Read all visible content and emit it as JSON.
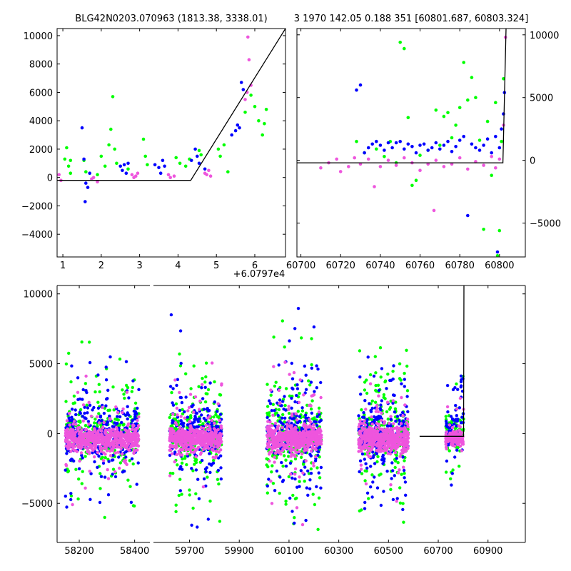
{
  "figure": {
    "title_left": "BLG42N0203.070963 (1813.38, 3338.01)",
    "title_right": "3 1970 142.05 0.188 351 [60801.687, 60803.324]",
    "offset_label": "+6.0797e4"
  },
  "colors": {
    "green": "#00ff00",
    "blue": "#0000ff",
    "magenta": "#ee55dd",
    "line": "#000000"
  },
  "chart_data": [
    {
      "name": "zoom-panel",
      "type": "scatter",
      "title": "BLG42N0203.070963 (1813.38, 3338.01)",
      "xlabel": "",
      "ylabel": "",
      "xlim": [
        0.85,
        6.8
      ],
      "ylim": [
        -5600,
        10500
      ],
      "xticks": [
        1,
        2,
        3,
        4,
        5,
        6
      ],
      "xtick_labels": [
        "1",
        "2",
        "3",
        "4",
        "5",
        "6"
      ],
      "yticks": [
        -4000,
        -2000,
        0,
        2000,
        4000,
        6000,
        8000,
        10000
      ],
      "ytick_labels": [
        "−4000",
        "−2000",
        "0",
        "2000",
        "4000",
        "6000",
        "8000",
        "10000"
      ],
      "x_offset_label": "+6.0797e4",
      "model_line": {
        "x": [
          0.85,
          4.33,
          6.8
        ],
        "y": [
          -200,
          -200,
          10500
        ]
      },
      "series": [
        {
          "name": "green",
          "color": "#00ff00",
          "points": [
            [
              1.05,
              1300
            ],
            [
              1.1,
              2100
            ],
            [
              1.15,
              800
            ],
            [
              1.2,
              300
            ],
            [
              1.2,
              1200
            ],
            [
              1.55,
              1200
            ],
            [
              1.6,
              400
            ],
            [
              1.9,
              200
            ],
            [
              2.0,
              1500
            ],
            [
              2.1,
              800
            ],
            [
              2.2,
              2300
            ],
            [
              2.25,
              3400
            ],
            [
              2.3,
              5700
            ],
            [
              2.35,
              2000
            ],
            [
              2.4,
              1000
            ],
            [
              2.7,
              600
            ],
            [
              3.1,
              2700
            ],
            [
              3.15,
              1500
            ],
            [
              3.2,
              900
            ],
            [
              3.95,
              1400
            ],
            [
              4.05,
              1000
            ],
            [
              4.2,
              800
            ],
            [
              4.3,
              1300
            ],
            [
              4.55,
              1900
            ],
            [
              4.6,
              1600
            ],
            [
              5.05,
              2000
            ],
            [
              5.1,
              1500
            ],
            [
              5.2,
              2300
            ],
            [
              5.3,
              400
            ],
            [
              5.75,
              4600
            ],
            [
              5.9,
              5800
            ],
            [
              6.0,
              5000
            ],
            [
              6.1,
              4000
            ],
            [
              6.2,
              3000
            ],
            [
              6.25,
              3800
            ],
            [
              6.3,
              4800
            ]
          ]
        },
        {
          "name": "blue",
          "color": "#0000ff",
          "points": [
            [
              1.5,
              3500
            ],
            [
              1.55,
              1300
            ],
            [
              1.6,
              -400
            ],
            [
              1.65,
              -700
            ],
            [
              1.58,
              -1700
            ],
            [
              1.7,
              300
            ],
            [
              2.5,
              800
            ],
            [
              2.55,
              500
            ],
            [
              2.6,
              900
            ],
            [
              2.65,
              300
            ],
            [
              2.7,
              1000
            ],
            [
              3.4,
              900
            ],
            [
              3.5,
              700
            ],
            [
              3.55,
              300
            ],
            [
              3.6,
              1200
            ],
            [
              3.65,
              800
            ],
            [
              4.35,
              1200
            ],
            [
              4.45,
              2000
            ],
            [
              4.5,
              1500
            ],
            [
              4.55,
              1000
            ],
            [
              4.7,
              600
            ],
            [
              5.4,
              3000
            ],
            [
              5.5,
              3300
            ],
            [
              5.55,
              3700
            ],
            [
              5.6,
              3500
            ],
            [
              5.65,
              6700
            ],
            [
              5.7,
              6200
            ]
          ]
        },
        {
          "name": "magenta",
          "color": "#ee55dd",
          "points": [
            [
              0.9,
              200
            ],
            [
              0.95,
              -200
            ],
            [
              1.75,
              -100
            ],
            [
              1.8,
              0
            ],
            [
              1.9,
              -300
            ],
            [
              2.8,
              200
            ],
            [
              2.85,
              0
            ],
            [
              2.9,
              100
            ],
            [
              2.95,
              300
            ],
            [
              3.75,
              200
            ],
            [
              3.8,
              0
            ],
            [
              3.9,
              100
            ],
            [
              4.7,
              300
            ],
            [
              4.75,
              200
            ],
            [
              4.8,
              500
            ],
            [
              4.85,
              100
            ],
            [
              5.75,
              5500
            ],
            [
              5.8,
              6000
            ],
            [
              5.85,
              8300
            ],
            [
              5.82,
              9900
            ],
            [
              5.9,
              6500
            ]
          ]
        }
      ]
    },
    {
      "name": "recent-panel",
      "type": "scatter",
      "title": "3 1970 142.05 0.188 351 [60801.687, 60803.324]",
      "xlabel": "",
      "ylabel": "",
      "xlim": [
        60698,
        60813
      ],
      "ylim": [
        -7700,
        10500
      ],
      "xticks": [
        60700,
        60720,
        60740,
        60760,
        60780,
        60800
      ],
      "xtick_labels": [
        "60700",
        "60720",
        "60740",
        "60760",
        "60780",
        "60800"
      ],
      "yticks": [
        -5000,
        0,
        5000,
        10000
      ],
      "ytick_labels": [
        "−5000",
        "0",
        "5000",
        "10000"
      ],
      "yaxis_side": "right",
      "model_line": {
        "x": [
          60698,
          60801.7,
          60803.3
        ],
        "y": [
          -200,
          -200,
          10500
        ]
      },
      "series": [
        {
          "name": "green",
          "color": "#00ff00",
          "points": [
            [
              60728,
              1500
            ],
            [
              60732,
              600
            ],
            [
              60738,
              900
            ],
            [
              60742,
              300
            ],
            [
              60745,
              1500
            ],
            [
              60748,
              -200
            ],
            [
              60750,
              9400
            ],
            [
              60752,
              8900
            ],
            [
              60754,
              3400
            ],
            [
              60756,
              -2000
            ],
            [
              60758,
              -1600
            ],
            [
              60760,
              400
            ],
            [
              60764,
              800
            ],
            [
              60768,
              4000
            ],
            [
              60770,
              1200
            ],
            [
              60772,
              3500
            ],
            [
              60774,
              3800
            ],
            [
              60776,
              1800
            ],
            [
              60778,
              2800
            ],
            [
              60780,
              4200
            ],
            [
              60782,
              7800
            ],
            [
              60784,
              4800
            ],
            [
              60786,
              6600
            ],
            [
              60788,
              5000
            ],
            [
              60790,
              1600
            ],
            [
              60792,
              -5500
            ],
            [
              60794,
              3100
            ],
            [
              60796,
              -1200
            ],
            [
              60798,
              4600
            ],
            [
              60799,
              -7600
            ],
            [
              60800,
              -5600
            ],
            [
              60801,
              1500
            ],
            [
              60802,
              6500
            ]
          ]
        },
        {
          "name": "blue",
          "color": "#0000ff",
          "points": [
            [
              60728,
              5600
            ],
            [
              60730,
              6000
            ],
            [
              60732,
              600
            ],
            [
              60734,
              1000
            ],
            [
              60736,
              1300
            ],
            [
              60738,
              1500
            ],
            [
              60740,
              1200
            ],
            [
              60742,
              800
            ],
            [
              60744,
              1400
            ],
            [
              60746,
              1000
            ],
            [
              60748,
              1400
            ],
            [
              60750,
              1500
            ],
            [
              60752,
              900
            ],
            [
              60754,
              1300
            ],
            [
              60756,
              1100
            ],
            [
              60758,
              600
            ],
            [
              60760,
              1200
            ],
            [
              60762,
              1300
            ],
            [
              60764,
              800
            ],
            [
              60766,
              1000
            ],
            [
              60768,
              1400
            ],
            [
              60770,
              900
            ],
            [
              60772,
              1200
            ],
            [
              60774,
              1500
            ],
            [
              60776,
              700
            ],
            [
              60778,
              1100
            ],
            [
              60780,
              1600
            ],
            [
              60782,
              1900
            ],
            [
              60784,
              -4400
            ],
            [
              60786,
              1300
            ],
            [
              60788,
              1000
            ],
            [
              60790,
              800
            ],
            [
              60792,
              1200
            ],
            [
              60794,
              1700
            ],
            [
              60796,
              600
            ],
            [
              60798,
              1900
            ],
            [
              60799,
              -7300
            ],
            [
              60800,
              1000
            ],
            [
              60801,
              2500
            ],
            [
              60802,
              3700
            ],
            [
              60802.5,
              5400
            ]
          ]
        },
        {
          "name": "magenta",
          "color": "#ee55dd",
          "points": [
            [
              60710,
              -600
            ],
            [
              60714,
              -200
            ],
            [
              60718,
              100
            ],
            [
              60720,
              -900
            ],
            [
              60724,
              -500
            ],
            [
              60727,
              200
            ],
            [
              60730,
              -300
            ],
            [
              60734,
              100
            ],
            [
              60737,
              -2100
            ],
            [
              60740,
              -500
            ],
            [
              60744,
              0
            ],
            [
              60748,
              -400
            ],
            [
              60752,
              200
            ],
            [
              60756,
              -200
            ],
            [
              60760,
              -800
            ],
            [
              60764,
              -300
            ],
            [
              60767,
              -4000
            ],
            [
              60768,
              0
            ],
            [
              60772,
              -500
            ],
            [
              60776,
              -300
            ],
            [
              60780,
              200
            ],
            [
              60784,
              -700
            ],
            [
              60788,
              -100
            ],
            [
              60792,
              -400
            ],
            [
              60796,
              300
            ],
            [
              60798,
              -600
            ],
            [
              60800,
              100
            ],
            [
              60802,
              2800
            ],
            [
              60803,
              9800
            ]
          ]
        }
      ]
    },
    {
      "name": "full-lightcurve",
      "type": "scatter",
      "title": "",
      "xlabel": "",
      "ylabel": "",
      "broken_axis": true,
      "segments": [
        {
          "xlim": [
            58120,
            58455
          ],
          "xticks": [
            58200,
            58400
          ],
          "xtick_labels": [
            "58200",
            "58400"
          ]
        },
        {
          "xlim": [
            59555,
            61050
          ],
          "xticks": [
            59700,
            59900,
            60100,
            60300,
            60500,
            60700,
            60900
          ],
          "xtick_labels": [
            "59700",
            "59900",
            "60100",
            "60300",
            "60500",
            "60700",
            "60900"
          ]
        }
      ],
      "ylim": [
        -7800,
        10600
      ],
      "yticks": [
        -5000,
        0,
        5000,
        10000
      ],
      "ytick_labels": [
        "−5000",
        "0",
        "5000",
        "10000"
      ],
      "model_line": {
        "x": [
          60625,
          60801.7,
          60803.3
        ],
        "y": [
          -200,
          -200,
          10600
        ]
      },
      "seasons": [
        {
          "x_start": 58150,
          "x_end": 58415,
          "core_half_width": 900,
          "spread": 4500
        },
        {
          "x_start": 59620,
          "x_end": 59830,
          "core_half_width": 900,
          "spread": 5200
        },
        {
          "x_start": 60010,
          "x_end": 60230,
          "core_half_width": 1100,
          "spread": 5400
        },
        {
          "x_start": 60380,
          "x_end": 60580,
          "core_half_width": 1000,
          "spread": 5000
        },
        {
          "x_start": 60730,
          "x_end": 60802,
          "core_half_width": 600,
          "spread": 2600
        }
      ],
      "series": [
        {
          "name": "green",
          "color": "#00ff00"
        },
        {
          "name": "blue",
          "color": "#0000ff"
        },
        {
          "name": "magenta",
          "color": "#ee55dd"
        }
      ]
    }
  ]
}
